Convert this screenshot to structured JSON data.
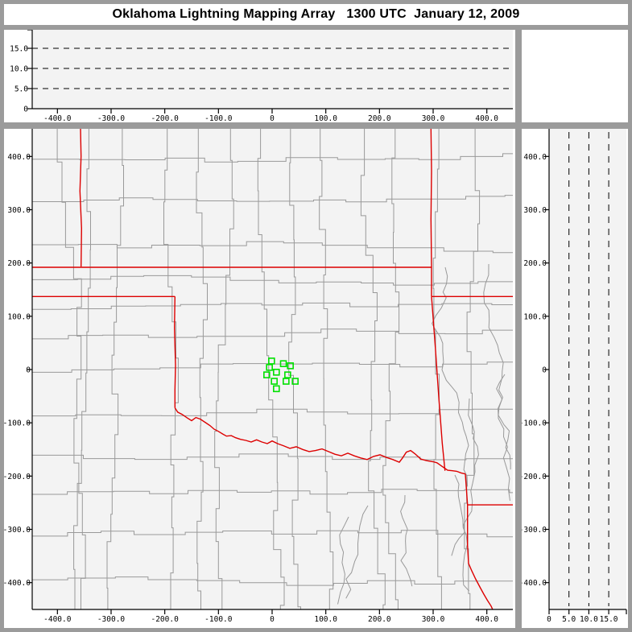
{
  "title": "Oklahoma Lightning Mapping Array   1300 UTC  January 12, 2009",
  "colors": {
    "frame": "#9b9b9b",
    "panel_bg": "#ffffff",
    "plot_bg": "#f3f3f3",
    "county_line": "#999999",
    "state_border": "#dd0000",
    "station": "#00e000",
    "axis": "#000000",
    "title_text": "#000000"
  },
  "chart_data": {
    "type": "scatter",
    "title": "Oklahoma Lightning Mapping Array   1300 UTC  January 12, 2009",
    "time_utc": "1300 UTC",
    "date": "January 12, 2009",
    "panels": {
      "ew_altitude": {
        "description": "altitude (km) vs east-west distance (km); no lightning sources plotted",
        "xlim": [
          -447,
          448
        ],
        "ylim": [
          0,
          19.6
        ],
        "xticks": [
          {
            "v": -400,
            "l": "-400.0"
          },
          {
            "v": -300,
            "l": "-300.0"
          },
          {
            "v": -200,
            "l": "-200.0"
          },
          {
            "v": -100,
            "l": "-100.0"
          },
          {
            "v": 0,
            "l": "0"
          },
          {
            "v": 100,
            "l": "100.0"
          },
          {
            "v": 200,
            "l": "200.0"
          },
          {
            "v": 300,
            "l": "300.0"
          },
          {
            "v": 400,
            "l": "400.0"
          }
        ],
        "yticks": [
          {
            "v": 15,
            "l": "15.0"
          },
          {
            "v": 10,
            "l": "10.0"
          },
          {
            "v": 5,
            "l": "5.0"
          },
          {
            "v": 0,
            "l": "0"
          }
        ],
        "dashed_altitudes_km": [
          5,
          10,
          15
        ],
        "points": []
      },
      "plan_view": {
        "description": "plan view map, km east-west vs km north-south, county and state boundaries with LMA station squares",
        "xlim": [
          -447,
          448
        ],
        "ylim": [
          -450,
          452
        ],
        "xticks": [
          {
            "v": -400,
            "l": "-400.0"
          },
          {
            "v": -300,
            "l": "-300.0"
          },
          {
            "v": -200,
            "l": "-200.0"
          },
          {
            "v": -100,
            "l": "-100.0"
          },
          {
            "v": 0,
            "l": "0"
          },
          {
            "v": 100,
            "l": "100.0"
          },
          {
            "v": 200,
            "l": "200.0"
          },
          {
            "v": 300,
            "l": "300.0"
          },
          {
            "v": 400,
            "l": "400.0"
          }
        ],
        "yticks": [
          {
            "v": 400,
            "l": "400.0"
          },
          {
            "v": 300,
            "l": "300.0"
          },
          {
            "v": 200,
            "l": "200.0"
          },
          {
            "v": 100,
            "l": "100.0"
          },
          {
            "v": 0,
            "l": "0"
          },
          {
            "v": -100,
            "l": "-100.0"
          },
          {
            "v": -200,
            "l": "-200.0"
          },
          {
            "v": -300,
            "l": "-300.0"
          },
          {
            "v": -400,
            "l": "-400.0"
          }
        ],
        "stations_km": [
          [
            -1,
            16
          ],
          [
            21,
            11
          ],
          [
            34,
            7
          ],
          [
            -5,
            4
          ],
          [
            8,
            -5
          ],
          [
            29,
            -10
          ],
          [
            -10,
            -10
          ],
          [
            4,
            -22
          ],
          [
            26,
            -22
          ],
          [
            43,
            -22
          ],
          [
            8,
            -36
          ]
        ],
        "state_borders_km": [
          [
            [
              -357,
              452
            ],
            [
              -356,
              400
            ],
            [
              -358,
              335
            ],
            [
              -355,
              265
            ],
            [
              -356,
              193
            ]
          ],
          [
            [
              -447,
              192
            ],
            [
              297,
              192
            ]
          ],
          [
            [
              -447,
              137
            ],
            [
              -181,
              137
            ]
          ],
          [
            [
              -181,
              137
            ],
            [
              -182,
              78
            ],
            [
              -180,
              8
            ],
            [
              -181,
              -38
            ],
            [
              -181,
              -72
            ]
          ],
          [
            [
              296,
              452
            ],
            [
              297,
              372
            ],
            [
              296,
              282
            ],
            [
              297,
              192
            ],
            [
              297,
              137
            ]
          ],
          [
            [
              297,
              137
            ],
            [
              453,
              137
            ]
          ],
          [
            [
              297,
              137
            ],
            [
              304,
              42
            ],
            [
              311,
              -58
            ],
            [
              317,
              -138
            ],
            [
              322,
              -190
            ]
          ],
          [
            [
              360,
              -196
            ],
            [
              362,
              -224
            ],
            [
              364,
              -254
            ]
          ],
          [
            [
              364,
              -254
            ],
            [
              453,
              -254
            ]
          ],
          [
            [
              364,
              -254
            ],
            [
              364,
              -330
            ],
            [
              366,
              -364
            ],
            [
              372,
              -378
            ],
            [
              379,
              -393
            ],
            [
              387,
              -408
            ],
            [
              394,
              -421
            ],
            [
              401,
              -433
            ],
            [
              408,
              -444
            ],
            [
              413,
              -455
            ]
          ],
          [
            [
              -181,
              -72
            ],
            [
              -176,
              -80
            ],
            [
              -168,
              -84
            ],
            [
              -158,
              -91
            ],
            [
              -150,
              -96
            ],
            [
              -142,
              -90
            ],
            [
              -134,
              -93
            ],
            [
              -125,
              -99
            ],
            [
              -116,
              -105
            ],
            [
              -108,
              -112
            ],
            [
              -100,
              -116
            ],
            [
              -92,
              -121
            ],
            [
              -85,
              -125
            ],
            [
              -76,
              -124
            ],
            [
              -68,
              -128
            ],
            [
              -59,
              -131
            ],
            [
              -49,
              -133
            ],
            [
              -39,
              -136
            ],
            [
              -29,
              -132
            ],
            [
              -19,
              -136
            ],
            [
              -9,
              -139
            ],
            [
              0,
              -134
            ],
            [
              10,
              -139
            ],
            [
              21,
              -143
            ],
            [
              33,
              -148
            ],
            [
              45,
              -145
            ],
            [
              57,
              -150
            ],
            [
              69,
              -154
            ],
            [
              81,
              -152
            ],
            [
              93,
              -149
            ],
            [
              105,
              -154
            ],
            [
              117,
              -159
            ],
            [
              129,
              -162
            ],
            [
              141,
              -157
            ],
            [
              153,
              -162
            ],
            [
              165,
              -166
            ],
            [
              177,
              -169
            ],
            [
              189,
              -163
            ],
            [
              201,
              -160
            ],
            [
              213,
              -165
            ],
            [
              225,
              -169
            ],
            [
              237,
              -174
            ],
            [
              243,
              -166
            ],
            [
              250,
              -155
            ],
            [
              258,
              -152
            ],
            [
              266,
              -158
            ],
            [
              277,
              -168
            ],
            [
              288,
              -171
            ],
            [
              300,
              -173
            ],
            [
              307,
              -175
            ],
            [
              317,
              -182
            ],
            [
              327,
              -189
            ],
            [
              336,
              -190
            ],
            [
              344,
              -191
            ],
            [
              352,
              -194
            ],
            [
              360,
              -196
            ]
          ]
        ]
      },
      "ns_altitude": {
        "description": "north-south distance (km) vs altitude (km); no lightning sources plotted",
        "xlim": [
          0,
          19.6
        ],
        "ylim": [
          -450,
          452
        ],
        "xticks": [
          {
            "v": 0,
            "l": "0"
          },
          {
            "v": 5,
            "l": "5.0"
          },
          {
            "v": 10,
            "l": "10.0"
          },
          {
            "v": 15,
            "l": "15.0"
          }
        ],
        "yticks": [
          {
            "v": 400,
            "l": "400.0"
          },
          {
            "v": 300,
            "l": "300.0"
          },
          {
            "v": 200,
            "l": "200.0"
          },
          {
            "v": 100,
            "l": "100.0"
          },
          {
            "v": 0,
            "l": "0"
          },
          {
            "v": -100,
            "l": "-100.0"
          },
          {
            "v": -200,
            "l": "-200.0"
          },
          {
            "v": -300,
            "l": "-300.0"
          },
          {
            "v": -400,
            "l": "-400.0"
          }
        ],
        "dashed_altitudes_km": [
          5,
          10,
          15
        ],
        "points": []
      }
    }
  }
}
